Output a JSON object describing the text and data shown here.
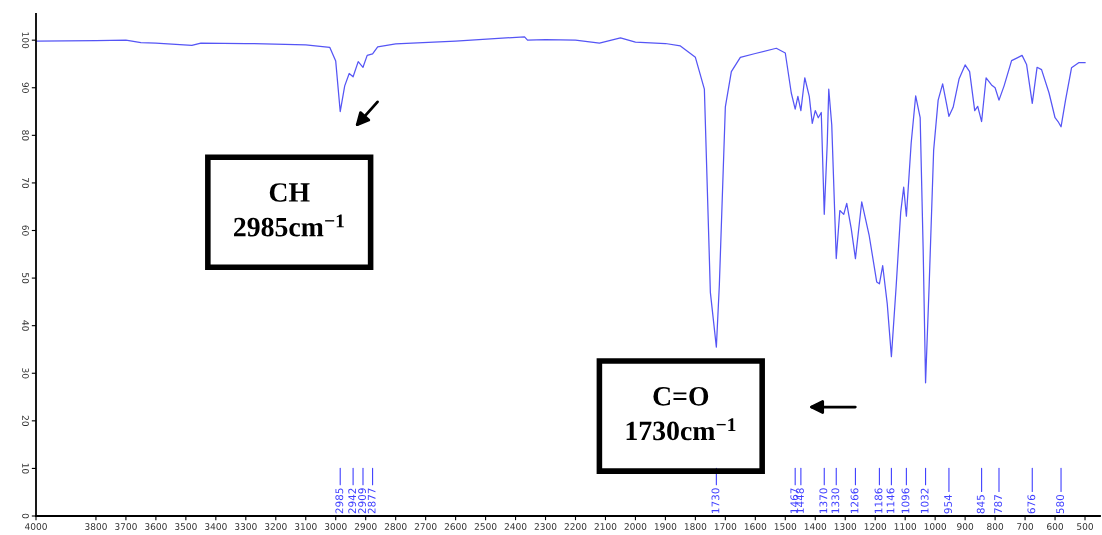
{
  "chart_data": {
    "type": "line",
    "xlim": [
      4000,
      450
    ],
    "ylim": [
      0,
      105.5
    ],
    "xticks": [
      4000,
      3800,
      3700,
      3600,
      3500,
      3400,
      3300,
      3200,
      3100,
      3000,
      2900,
      2800,
      2700,
      2600,
      2500,
      2400,
      2300,
      2200,
      2100,
      2000,
      1900,
      1800,
      1700,
      1600,
      1500,
      1400,
      1300,
      1200,
      1100,
      1000,
      900,
      800,
      700,
      600,
      500
    ],
    "yticks": [
      0,
      10,
      20,
      30,
      40,
      50,
      60,
      70,
      80,
      90,
      100
    ],
    "grid": false,
    "marker": "none",
    "line_style": "solid",
    "series": [
      {
        "color": "#5555f5",
        "x": [
          4000,
          3800,
          3700,
          3650,
          3600,
          3480,
          3450,
          3300,
          3100,
          3020,
          3000,
          2985,
          2970,
          2955,
          2942,
          2925,
          2909,
          2895,
          2877,
          2860,
          2800,
          2600,
          2370,
          2360,
          2300,
          2200,
          2120,
          2050,
          2000,
          1900,
          1850,
          1800,
          1770,
          1750,
          1730,
          1720,
          1700,
          1680,
          1650,
          1600,
          1530,
          1500,
          1480,
          1467,
          1458,
          1448,
          1435,
          1420,
          1410,
          1400,
          1390,
          1380,
          1370,
          1360,
          1355,
          1345,
          1330,
          1318,
          1305,
          1295,
          1280,
          1266,
          1245,
          1220,
          1195,
          1186,
          1175,
          1160,
          1146,
          1130,
          1115,
          1105,
          1096,
          1080,
          1065,
          1050,
          1040,
          1032,
          1020,
          1005,
          990,
          975,
          962,
          954,
          940,
          920,
          900,
          885,
          868,
          858,
          845,
          830,
          812,
          800,
          787,
          770,
          745,
          710,
          695,
          676,
          660,
          645,
          620,
          600,
          590,
          580,
          565,
          545,
          520,
          500
        ],
        "values": [
          99.8,
          99.9,
          100,
          99.5,
          99.4,
          98.9,
          99.4,
          99.3,
          99.0,
          98.5,
          95.6,
          85.0,
          90.4,
          93.0,
          92.3,
          95.5,
          94.3,
          96.8,
          97.1,
          98.6,
          99.2,
          99.8,
          100.7,
          100.0,
          100.1,
          100.0,
          99.4,
          100.5,
          99.6,
          99.3,
          98.8,
          96.4,
          89.7,
          47,
          35.5,
          48.6,
          86,
          93.4,
          96.4,
          97.2,
          98.3,
          97.3,
          88.9,
          85.5,
          88.2,
          85.2,
          92.1,
          88.2,
          82.5,
          85.2,
          83.7,
          84.8,
          63.4,
          78.4,
          89.7,
          82.2,
          54.1,
          64.2,
          63.4,
          65.7,
          60.4,
          54.1,
          66,
          58.9,
          49.2,
          48.8,
          52.6,
          44.7,
          33.5,
          48.4,
          63.8,
          69.1,
          63.0,
          78.4,
          88.3,
          83.7,
          56,
          28.0,
          48.5,
          76.9,
          87.4,
          90.8,
          86.6,
          84,
          85.9,
          91.9,
          94.8,
          93.4,
          85.2,
          86.1,
          82.9,
          92.1,
          90.6,
          90.0,
          87.4,
          90.4,
          95.7,
          96.8,
          94.9,
          86.7,
          94.3,
          93.8,
          88.9,
          83.7,
          82.9,
          81.8,
          87.4,
          94.2,
          95.3,
          95.3
        ]
      }
    ],
    "annotations": [
      "CH\n2985cm$^{−1}$",
      "C=O\n1730cm$^{−1}$",
      {
        "text": "2985",
        "x": 2985
      },
      {
        "text": "2942",
        "x": 2942
      },
      {
        "text": "2909",
        "x": 2909
      },
      {
        "text": "2877",
        "x": 2877
      },
      {
        "text": "1730",
        "x": 1730
      },
      {
        "text": "1467",
        "x": 1467
      },
      {
        "text": "1448",
        "x": 1448
      },
      {
        "text": "1370",
        "x": 1370
      },
      {
        "text": "1330",
        "x": 1330
      },
      {
        "text": "1266",
        "x": 1266
      },
      {
        "text": "1186",
        "x": 1186
      },
      {
        "text": "1146",
        "x": 1146
      },
      {
        "text": "1096",
        "x": 1096
      },
      {
        "text": "1032",
        "x": 1032
      },
      {
        "text": "954",
        "x": 954
      },
      {
        "text": "845",
        "x": 845
      },
      {
        "text": "787",
        "x": 787
      },
      {
        "text": "676",
        "x": 676
      },
      {
        "text": "580",
        "x": 580
      }
    ]
  }
}
